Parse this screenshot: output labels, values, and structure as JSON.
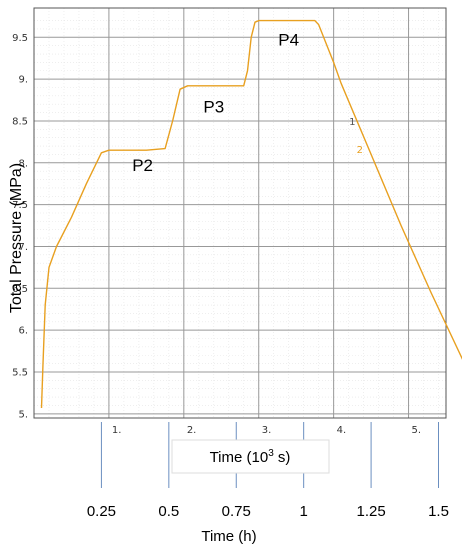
{
  "chart_data": {
    "type": "line",
    "y_axis": {
      "label": "Total Pressure (MPa)",
      "ylim": [
        4.95,
        9.85
      ],
      "ticks": [
        5,
        5.5,
        6,
        6.5,
        7,
        7.5,
        8,
        8.5,
        9,
        9.5
      ],
      "tick_labels": [
        "5.",
        "5.5",
        "6.",
        "6.5",
        "7.",
        "7.5",
        "8.",
        "8.5",
        "9.",
        "9.5"
      ]
    },
    "x_axis": {
      "label_main": "Time (10",
      "label_sup": "3",
      "label_tail": " s)",
      "xlim": [
        0,
        5.5
      ],
      "ticks": [
        1,
        2,
        3,
        4,
        5
      ],
      "tick_labels": [
        "1.",
        "2.",
        "3.",
        "4.",
        "5."
      ]
    },
    "secondary_x_axis": {
      "label": "Time (h)",
      "ticks": [
        0.25,
        0.5,
        0.75,
        1,
        1.25,
        1.5
      ],
      "tick_labels": [
        "0.25",
        "0.5",
        "0.75",
        "1",
        "1.25",
        "1.5"
      ]
    },
    "series": [
      {
        "color": "#e8a020",
        "points": [
          [
            0.1,
            5.07
          ],
          [
            0.12,
            5.6
          ],
          [
            0.15,
            6.3
          ],
          [
            0.2,
            6.75
          ],
          [
            0.3,
            7.0
          ],
          [
            0.5,
            7.35
          ],
          [
            0.7,
            7.75
          ],
          [
            0.9,
            8.12
          ],
          [
            1.0,
            8.15
          ],
          [
            1.5,
            8.15
          ],
          [
            1.75,
            8.17
          ],
          [
            1.85,
            8.5
          ],
          [
            1.95,
            8.88
          ],
          [
            2.05,
            8.92
          ],
          [
            2.8,
            8.92
          ],
          [
            2.85,
            9.1
          ],
          [
            2.9,
            9.5
          ],
          [
            2.95,
            9.68
          ],
          [
            3.0,
            9.7
          ],
          [
            3.75,
            9.7
          ],
          [
            3.8,
            9.65
          ],
          [
            4.0,
            9.2
          ],
          [
            4.1,
            8.95
          ],
          [
            4.5,
            8.1
          ],
          [
            4.9,
            7.25
          ],
          [
            5.3,
            6.45
          ],
          [
            5.8,
            5.5
          ],
          [
            5.95,
            5.17
          ]
        ]
      }
    ],
    "annotations": [
      {
        "text": "P2",
        "x": 1.45,
        "y": 7.9
      },
      {
        "text": "P3",
        "x": 2.4,
        "y": 8.6
      },
      {
        "text": "P4",
        "x": 3.4,
        "y": 9.4
      },
      {
        "text": "1",
        "x": 4.25,
        "y": 8.45,
        "color": "#555555"
      },
      {
        "text": "2",
        "x": 4.35,
        "y": 8.12,
        "color": "#e8a020"
      }
    ],
    "grid": true
  }
}
